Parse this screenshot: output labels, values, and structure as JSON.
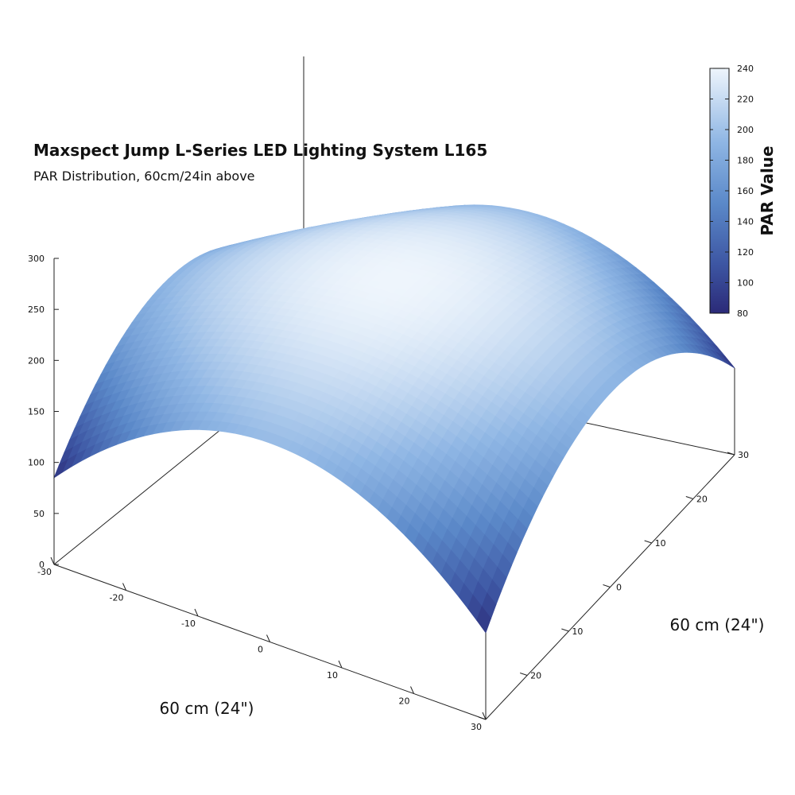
{
  "chart_data": {
    "type": "surface",
    "title": "Maxspect Jump L-Series LED Lighting System L165",
    "subtitle": "PAR Distribution, 60cm/24in above",
    "xlabel": "60 cm (24\")",
    "ylabel": "60 cm (24\")",
    "zlabel": "",
    "colorbar_label": "PAR Value",
    "x_range": [
      -30,
      30
    ],
    "y_range": [
      -30,
      30
    ],
    "zlim": [
      0,
      300
    ],
    "x_ticks": [
      -30,
      -20,
      -10,
      0,
      10,
      20,
      30
    ],
    "y_ticks": [
      -30,
      -20,
      -10,
      0,
      10,
      20,
      30
    ],
    "x_tick_labels": [
      "-30",
      "-20",
      "-10",
      "0",
      "10",
      "20",
      "30"
    ],
    "y_tick_labels": [
      "",
      "20",
      "10",
      "0",
      "10",
      "20",
      "30"
    ],
    "z_ticks": [
      0,
      50,
      100,
      150,
      200,
      250,
      300
    ],
    "colorbar_ticks": [
      80,
      100,
      120,
      140,
      160,
      180,
      200,
      220,
      240
    ],
    "colorbar_range": [
      80,
      240
    ],
    "colorbar_placement": "top-right",
    "grid": false,
    "surface": {
      "x": [
        -30,
        0,
        30
      ],
      "y": [
        -30,
        0,
        30
      ],
      "z": [
        [
          85,
          195,
          85
        ],
        [
          190,
          240,
          190
        ],
        [
          85,
          195,
          85
        ]
      ],
      "corner_values": {
        "x-30_y-30": 85,
        "x30_y-30": 85,
        "x-30_y30": 85,
        "x30_y30": 85
      },
      "peak": 240
    },
    "colors": {
      "low": "#2b2a78",
      "mid": "#6f9fd8",
      "high": "#eef5fc"
    }
  }
}
